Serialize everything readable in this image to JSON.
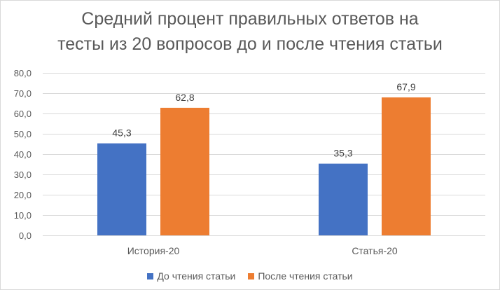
{
  "chart_data": {
    "type": "bar",
    "title_lines": [
      "Средний процент правильных ответов на",
      "тесты из 20 вопросов до и после чтения статьи"
    ],
    "categories": [
      "История-20",
      "Статья-20"
    ],
    "series": [
      {
        "name": "До чтения статьи",
        "values": [
          45.3,
          35.3
        ],
        "color": "#4472c4"
      },
      {
        "name": "После чтения статьи",
        "values": [
          62.8,
          67.9
        ],
        "color": "#ed7d31"
      }
    ],
    "data_labels": [
      [
        "45,3",
        "35,3"
      ],
      [
        "62,8",
        "67,9"
      ]
    ],
    "ylim": [
      0,
      80
    ],
    "y_ticks": [
      0,
      10,
      20,
      30,
      40,
      50,
      60,
      70,
      80
    ],
    "y_tick_labels": [
      "0,0",
      "10,0",
      "20,0",
      "30,0",
      "40,0",
      "50,0",
      "60,0",
      "70,0",
      "80,0"
    ],
    "grid": true,
    "legend_position": "bottom",
    "colors": {
      "gridline": "#d9d9d9",
      "text": "#595959"
    }
  }
}
